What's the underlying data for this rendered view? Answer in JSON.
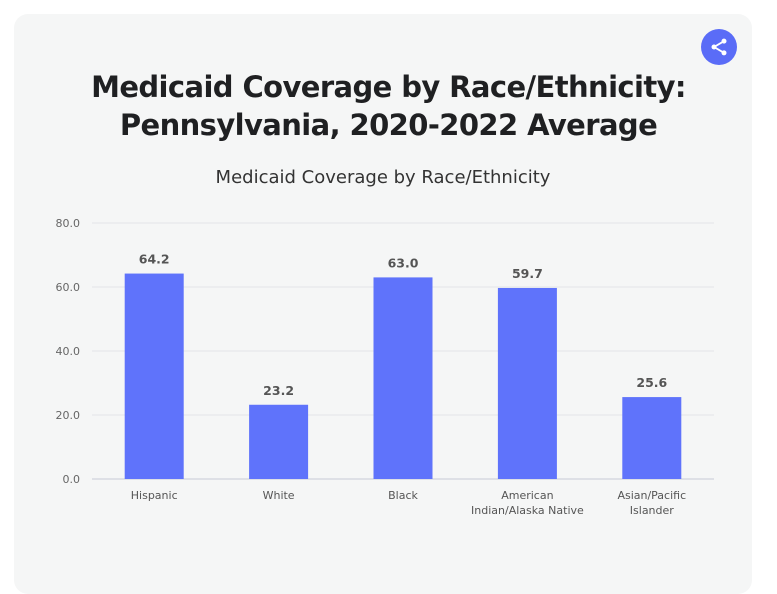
{
  "header": {
    "title_line1": "Medicaid Coverage by Race/Ethnicity:",
    "title_line2": "Pennsylvania, 2020-2022 Average",
    "share_icon": "share-icon"
  },
  "colors": {
    "bar": "#5f73fb",
    "card_background": "#f5f6f6",
    "share_button": "#5a6cf7"
  },
  "chart_data": {
    "type": "bar",
    "title": "Medicaid Coverage by Race/Ethnicity",
    "xlabel": "",
    "ylabel": "",
    "categories": [
      [
        "Hispanic"
      ],
      [
        "White"
      ],
      [
        "Black"
      ],
      [
        "American",
        "Indian/Alaska Native"
      ],
      [
        "Asian/Pacific",
        "Islander"
      ]
    ],
    "values": [
      64.2,
      23.2,
      63.0,
      59.7,
      25.6
    ],
    "value_labels": [
      "64.2",
      "23.2",
      "63.0",
      "59.7",
      "25.6"
    ],
    "ylim": [
      0,
      80
    ],
    "yticks": [
      0,
      20,
      40,
      60,
      80
    ],
    "ytick_labels": [
      "0.0",
      "20.0",
      "40.0",
      "60.0",
      "80.0"
    ],
    "grid": true,
    "legend": "none"
  }
}
